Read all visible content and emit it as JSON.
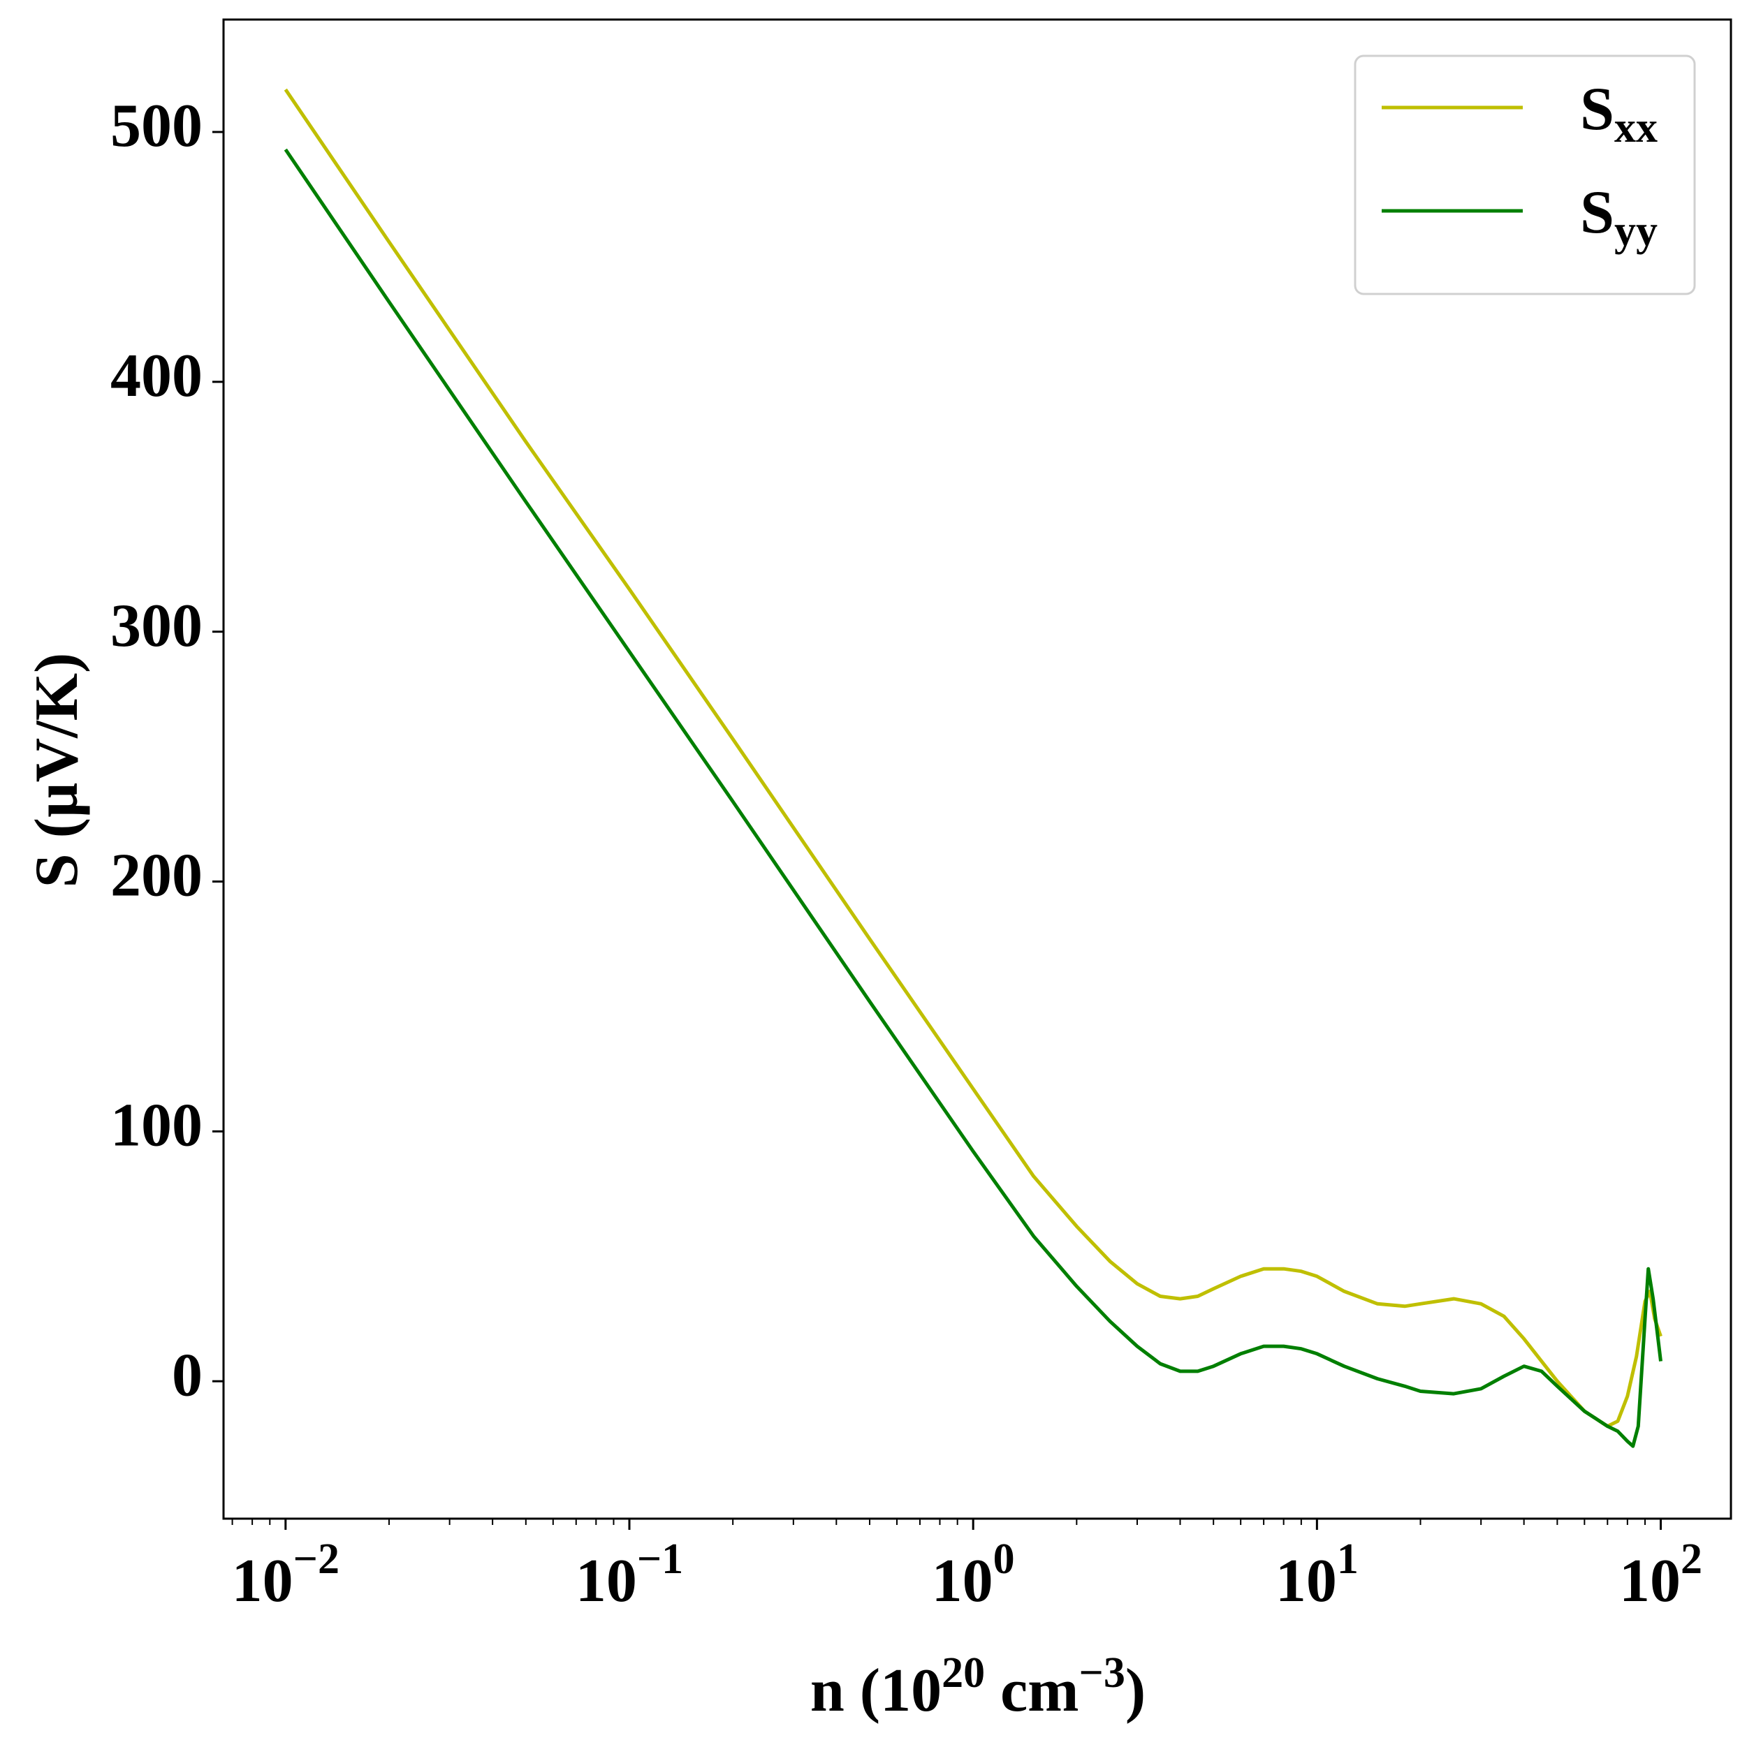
{
  "chart_data": {
    "type": "line",
    "title": "",
    "xlabel": {
      "base": "n (10",
      "sup1": "20",
      "mid": " cm",
      "sup2": "−3",
      "end": ")"
    },
    "ylabel": "S (µV/K)",
    "xscale": "log",
    "xlim": [
      0.0066,
      160
    ],
    "ylim": [
      -55,
      545
    ],
    "xticks": [
      {
        "value": 0.01,
        "base": "10",
        "exp": "−2"
      },
      {
        "value": 0.1,
        "base": "10",
        "exp": "−1"
      },
      {
        "value": 1,
        "base": "10",
        "exp": "0"
      },
      {
        "value": 10,
        "base": "10",
        "exp": "1"
      },
      {
        "value": 100,
        "base": "10",
        "exp": "2"
      }
    ],
    "yticks": [
      0,
      100,
      200,
      300,
      400,
      500
    ],
    "legend": {
      "position": "top-right",
      "entries": [
        {
          "base": "S",
          "sub": "xx"
        },
        {
          "base": "S",
          "sub": "yy"
        }
      ]
    },
    "series": [
      {
        "name": "Sxx",
        "color": "#bfbf00",
        "points": [
          [
            0.01,
            517
          ],
          [
            0.02,
            456
          ],
          [
            0.05,
            376
          ],
          [
            0.1,
            317
          ],
          [
            0.2,
            257
          ],
          [
            0.5,
            177
          ],
          [
            1,
            117
          ],
          [
            1.5,
            82
          ],
          [
            2,
            62
          ],
          [
            2.5,
            48
          ],
          [
            3,
            39
          ],
          [
            3.5,
            34
          ],
          [
            4,
            33
          ],
          [
            4.5,
            34
          ],
          [
            5,
            37
          ],
          [
            6,
            42
          ],
          [
            7,
            45
          ],
          [
            8,
            45
          ],
          [
            9,
            44
          ],
          [
            10,
            42
          ],
          [
            12,
            36
          ],
          [
            15,
            31
          ],
          [
            18,
            30
          ],
          [
            20,
            31
          ],
          [
            25,
            33
          ],
          [
            30,
            31
          ],
          [
            35,
            26
          ],
          [
            40,
            17
          ],
          [
            45,
            8
          ],
          [
            50,
            0
          ],
          [
            60,
            -12
          ],
          [
            70,
            -18
          ],
          [
            75,
            -16
          ],
          [
            80,
            -6
          ],
          [
            85,
            10
          ],
          [
            90,
            32
          ],
          [
            93,
            36
          ],
          [
            96,
            25
          ],
          [
            100,
            18
          ]
        ]
      },
      {
        "name": "Syy",
        "color": "#007f00",
        "points": [
          [
            0.01,
            493
          ],
          [
            0.02,
            432
          ],
          [
            0.05,
            352
          ],
          [
            0.1,
            292
          ],
          [
            0.2,
            232
          ],
          [
            0.5,
            152
          ],
          [
            1,
            92
          ],
          [
            1.5,
            58
          ],
          [
            2,
            38
          ],
          [
            2.5,
            24
          ],
          [
            3,
            14
          ],
          [
            3.5,
            7
          ],
          [
            4,
            4
          ],
          [
            4.5,
            4
          ],
          [
            5,
            6
          ],
          [
            6,
            11
          ],
          [
            7,
            14
          ],
          [
            8,
            14
          ],
          [
            9,
            13
          ],
          [
            10,
            11
          ],
          [
            12,
            6
          ],
          [
            15,
            1
          ],
          [
            18,
            -2
          ],
          [
            20,
            -4
          ],
          [
            25,
            -5
          ],
          [
            30,
            -3
          ],
          [
            35,
            2
          ],
          [
            40,
            6
          ],
          [
            45,
            4
          ],
          [
            50,
            -2
          ],
          [
            60,
            -12
          ],
          [
            70,
            -18
          ],
          [
            75,
            -20
          ],
          [
            80,
            -24
          ],
          [
            83,
            -26
          ],
          [
            86,
            -18
          ],
          [
            90,
            25
          ],
          [
            92,
            45
          ],
          [
            95,
            33
          ],
          [
            98,
            18
          ],
          [
            100,
            8
          ]
        ]
      }
    ]
  }
}
